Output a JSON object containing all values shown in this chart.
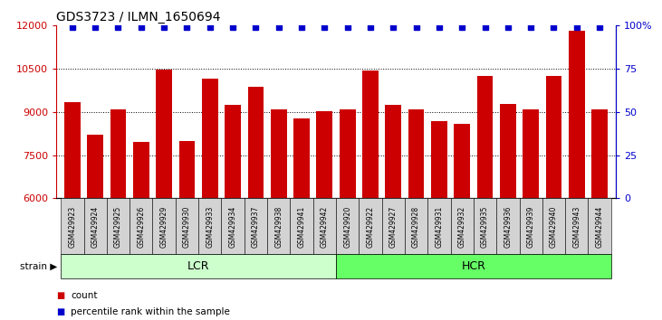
{
  "title": "GDS3723 / ILMN_1650694",
  "samples": [
    "GSM429923",
    "GSM429924",
    "GSM429925",
    "GSM429926",
    "GSM429929",
    "GSM429930",
    "GSM429933",
    "GSM429934",
    "GSM429937",
    "GSM429938",
    "GSM429941",
    "GSM429942",
    "GSM429920",
    "GSM429922",
    "GSM429927",
    "GSM429928",
    "GSM429931",
    "GSM429932",
    "GSM429935",
    "GSM429936",
    "GSM429939",
    "GSM429940",
    "GSM429943",
    "GSM429944"
  ],
  "counts": [
    9350,
    8200,
    9100,
    7950,
    10480,
    7980,
    10150,
    9250,
    9870,
    9080,
    8780,
    9020,
    9080,
    10450,
    9250,
    9100,
    8680,
    8580,
    10250,
    9270,
    9100,
    10250,
    11820,
    9100
  ],
  "lcr_count": 12,
  "hcr_count": 12,
  "bar_color": "#cc0000",
  "percentile_color": "#0000cc",
  "ylim_left": [
    6000,
    12000
  ],
  "ylim_right": [
    0,
    100
  ],
  "yticks_left": [
    6000,
    7500,
    9000,
    10500,
    12000
  ],
  "yticks_right": [
    0,
    25,
    50,
    75,
    100
  ],
  "lcr_label": "LCR",
  "hcr_label": "HCR",
  "strain_label": "strain",
  "legend_count": "count",
  "legend_percentile": "percentile rank within the sample",
  "plot_bg_color": "#ffffff",
  "fig_bg_color": "#ffffff",
  "tick_bg_color": "#d3d3d3",
  "lcr_color": "#ccffcc",
  "hcr_color": "#66ff66",
  "strain_arrow_color": "#808080"
}
